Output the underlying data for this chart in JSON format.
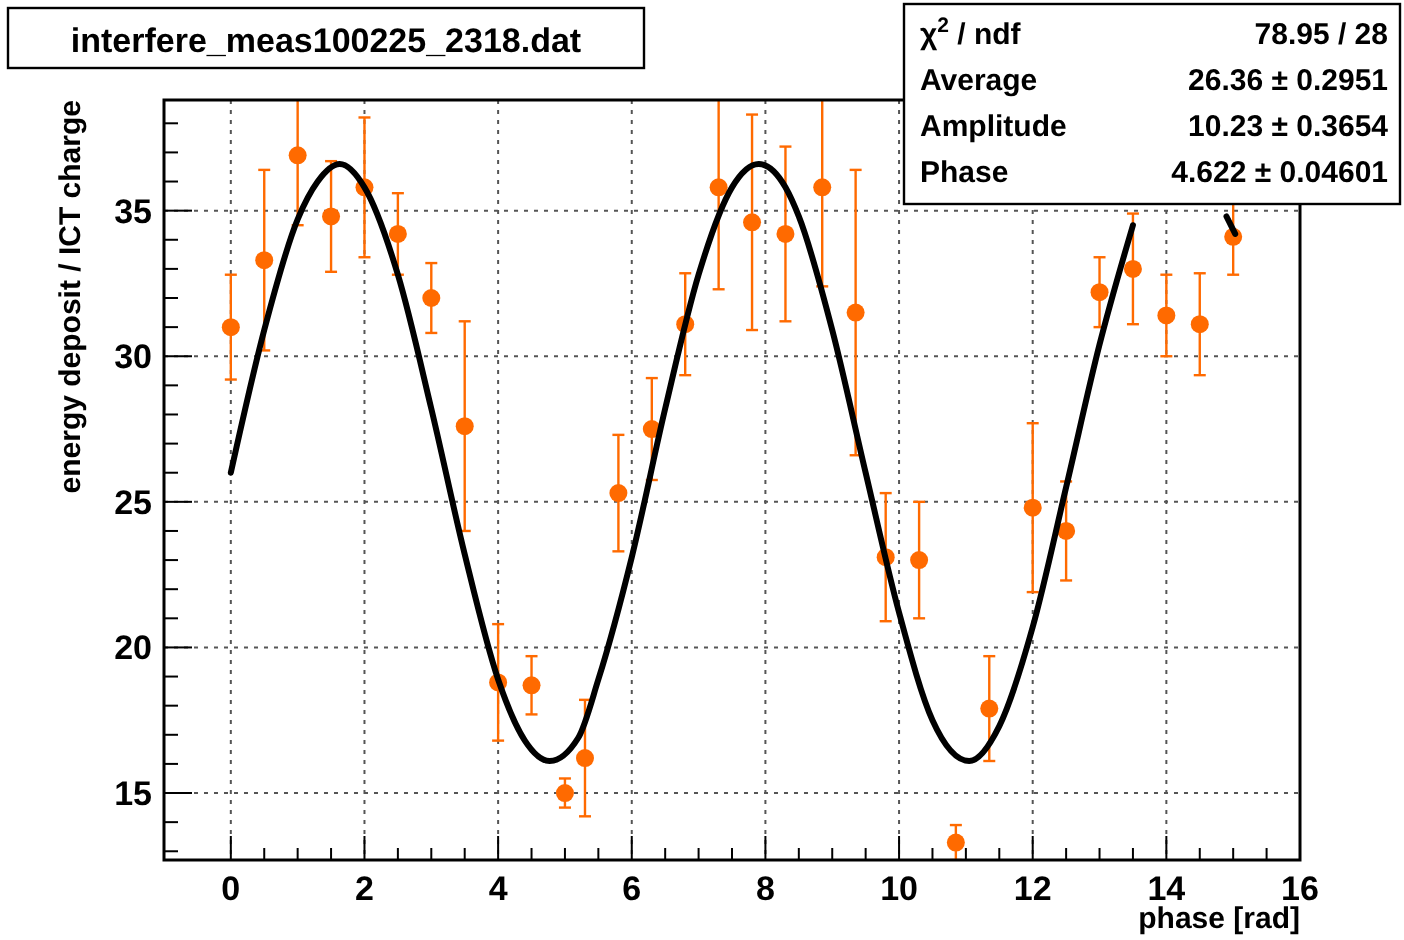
{
  "chart_data": {
    "type": "scatter",
    "title": "interfere_meas100225_2318.dat",
    "xlabel": "phase [rad]",
    "ylabel": "energy deposit / ICT charge",
    "annotations": [
      "χ$^{2}$ / ndf",
      "78.95 / 28",
      "Average",
      "26.36 ± 0.2951",
      "Amplitude",
      "10.23 ± 0.3654",
      "Phase",
      "4.622 ± 0.04601"
    ],
    "xlim": [
      -1,
      16
    ],
    "ylim": [
      12.7,
      38.8
    ],
    "xticks": [
      0,
      {
        "value": 0.5,
        "label": null
      },
      {
        "value": 1,
        "label": null
      },
      {
        "value": 1.5,
        "label": null
      },
      2,
      {
        "value": 2.5,
        "label": null
      },
      {
        "value": 3,
        "label": null
      },
      {
        "value": 3.5,
        "label": null
      },
      4,
      {
        "value": 4.5,
        "label": null
      },
      {
        "value": 5,
        "label": null
      },
      {
        "value": 5.5,
        "label": null
      },
      6,
      {
        "value": 6.5,
        "label": null
      },
      {
        "value": 7,
        "label": null
      },
      {
        "value": 7.5,
        "label": null
      },
      8,
      {
        "value": 8.5,
        "label": null
      },
      {
        "value": 9,
        "label": null
      },
      {
        "value": 9.5,
        "label": null
      },
      10,
      {
        "value": 10.5,
        "label": null
      },
      {
        "value": 11,
        "label": null
      },
      {
        "value": 11.5,
        "label": null
      },
      12,
      {
        "value": 12.5,
        "label": null
      },
      {
        "value": 13,
        "label": null
      },
      {
        "value": 13.5,
        "label": null
      },
      14,
      {
        "value": 14.5,
        "label": null
      },
      {
        "value": 15,
        "label": null
      },
      {
        "value": 15.5,
        "label": null
      },
      16
    ],
    "yticks": [
      {
        "value": 13,
        "label": null
      },
      {
        "value": 14,
        "label": null
      },
      15,
      {
        "value": 16,
        "label": null
      },
      {
        "value": 17,
        "label": null
      },
      {
        "value": 18,
        "label": null
      },
      {
        "value": 19,
        "label": null
      },
      20,
      {
        "value": 21,
        "label": null
      },
      {
        "value": 22,
        "label": null
      },
      {
        "value": 23,
        "label": null
      },
      {
        "value": 24,
        "label": null
      },
      25,
      {
        "value": 26,
        "label": null
      },
      {
        "value": 27,
        "label": null
      },
      {
        "value": 28,
        "label": null
      },
      {
        "value": 29,
        "label": null
      },
      30,
      {
        "value": 31,
        "label": null
      },
      {
        "value": 32,
        "label": null
      },
      {
        "value": 33,
        "label": null
      },
      {
        "value": 34,
        "label": null
      },
      35,
      {
        "value": 36,
        "label": null
      },
      {
        "value": 37,
        "label": null
      },
      {
        "value": 38,
        "label": null
      }
    ],
    "grid": true,
    "series": [
      {
        "type": "scatter",
        "color": "#ff6a00",
        "marker": "circle",
        "x": [
          0,
          0.5,
          1,
          1.5,
          2,
          2.5,
          3,
          3.5,
          4,
          4.5,
          5,
          5.3,
          5.8,
          6.3,
          6.8,
          7.3,
          7.8,
          8.3,
          8.85,
          9.35,
          9.8,
          10.3,
          10.85,
          11.35,
          12,
          12.5,
          13,
          13.5,
          14,
          14.5,
          15
        ],
        "values": [
          31.0,
          33.3,
          36.9,
          34.8,
          35.8,
          34.2,
          32.0,
          27.6,
          18.8,
          18.7,
          15.0,
          16.2,
          25.3,
          27.5,
          31.1,
          35.8,
          34.6,
          34.2,
          35.8,
          31.5,
          23.1,
          23.0,
          13.3,
          17.9,
          24.8,
          24.0,
          32.2,
          33.0,
          31.4,
          31.1,
          34.1
        ],
        "errors": [
          1.8,
          3.1,
          2.4,
          1.9,
          2.4,
          1.4,
          1.2,
          3.6,
          2.0,
          1.0,
          0.5,
          2.0,
          2.0,
          1.75,
          1.75,
          3.5,
          3.7,
          3.0,
          3.4,
          4.9,
          2.2,
          2.0,
          0.6,
          1.8,
          2.9,
          1.7,
          1.2,
          1.9,
          1.4,
          1.75,
          1.3
        ]
      },
      {
        "type": "line",
        "color": "#000000",
        "marker": "none",
        "line_style": "solid",
        "x": [
          0,
          0.5,
          1,
          1.3,
          1.63,
          2,
          2.5,
          3,
          3.5,
          4,
          4.4,
          4.77,
          5.2,
          5.5,
          6,
          6.5,
          7,
          7.5,
          7.9,
          8.3,
          8.5,
          9,
          9.5,
          10,
          10.5,
          11.05,
          11.5,
          12,
          12.5,
          13,
          13.5,
          13.7,
          14.65,
          14.9,
          15.03
        ],
        "values": [
          26.0,
          30.9,
          34.7,
          36.0,
          36.6,
          35.8,
          32.8,
          28.2,
          23.2,
          18.9,
          16.8,
          16.1,
          16.9,
          18.9,
          23.1,
          28.2,
          32.8,
          35.8,
          36.6,
          35.8,
          34.8,
          30.9,
          26.0,
          21.2,
          17.5,
          16.1,
          17.3,
          20.7,
          25.5,
          30.4,
          34.5,
          null,
          null,
          34.8,
          34.2
        ]
      }
    ]
  }
}
